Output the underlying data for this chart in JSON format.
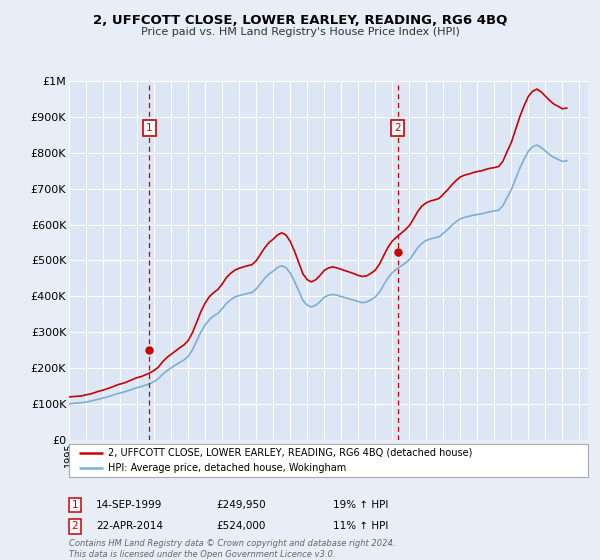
{
  "title": "2, UFFCOTT CLOSE, LOWER EARLEY, READING, RG6 4BQ",
  "subtitle": "Price paid vs. HM Land Registry's House Price Index (HPI)",
  "background_color": "#e8eef8",
  "plot_bg_color": "#dce6f5",
  "grid_color": "#ffffff",
  "ylim": [
    0,
    1000000
  ],
  "yticks": [
    0,
    100000,
    200000,
    300000,
    400000,
    500000,
    600000,
    700000,
    800000,
    900000,
    1000000
  ],
  "ytick_labels": [
    "£0",
    "£100K",
    "£200K",
    "£300K",
    "£400K",
    "£500K",
    "£600K",
    "£700K",
    "£800K",
    "£900K",
    "£1M"
  ],
  "sale1_year": 1999.71,
  "sale1_price": 249950,
  "sale2_year": 2014.31,
  "sale2_price": 524000,
  "legend_line1": "2, UFFCOTT CLOSE, LOWER EARLEY, READING, RG6 4BQ (detached house)",
  "legend_line2": "HPI: Average price, detached house, Wokingham",
  "note1_label": "1",
  "note1_date": "14-SEP-1999",
  "note1_price": "£249,950",
  "note1_hpi": "19% ↑ HPI",
  "note2_label": "2",
  "note2_date": "22-APR-2014",
  "note2_price": "£524,000",
  "note2_hpi": "11% ↑ HPI",
  "footer": "Contains HM Land Registry data © Crown copyright and database right 2024.\nThis data is licensed under the Open Government Licence v3.0.",
  "line_red_color": "#cc0000",
  "line_blue_color": "#7bafd4",
  "marker_vline_color": "#cc0000",
  "hpi_years": [
    1995.0,
    1995.25,
    1995.5,
    1995.75,
    1996.0,
    1996.25,
    1996.5,
    1996.75,
    1997.0,
    1997.25,
    1997.5,
    1997.75,
    1998.0,
    1998.25,
    1998.5,
    1998.75,
    1999.0,
    1999.25,
    1999.5,
    1999.75,
    2000.0,
    2000.25,
    2000.5,
    2000.75,
    2001.0,
    2001.25,
    2001.5,
    2001.75,
    2002.0,
    2002.25,
    2002.5,
    2002.75,
    2003.0,
    2003.25,
    2003.5,
    2003.75,
    2004.0,
    2004.25,
    2004.5,
    2004.75,
    2005.0,
    2005.25,
    2005.5,
    2005.75,
    2006.0,
    2006.25,
    2006.5,
    2006.75,
    2007.0,
    2007.25,
    2007.5,
    2007.75,
    2008.0,
    2008.25,
    2008.5,
    2008.75,
    2009.0,
    2009.25,
    2009.5,
    2009.75,
    2010.0,
    2010.25,
    2010.5,
    2010.75,
    2011.0,
    2011.25,
    2011.5,
    2011.75,
    2012.0,
    2012.25,
    2012.5,
    2012.75,
    2013.0,
    2013.25,
    2013.5,
    2013.75,
    2014.0,
    2014.25,
    2014.5,
    2014.75,
    2015.0,
    2015.25,
    2015.5,
    2015.75,
    2016.0,
    2016.25,
    2016.5,
    2016.75,
    2017.0,
    2017.25,
    2017.5,
    2017.75,
    2018.0,
    2018.25,
    2018.5,
    2018.75,
    2019.0,
    2019.25,
    2019.5,
    2019.75,
    2020.0,
    2020.25,
    2020.5,
    2020.75,
    2021.0,
    2021.25,
    2021.5,
    2021.75,
    2022.0,
    2022.25,
    2022.5,
    2022.75,
    2023.0,
    2023.25,
    2023.5,
    2023.75,
    2024.0,
    2024.25
  ],
  "hpi_values": [
    100000,
    101000,
    102000,
    103000,
    105000,
    107000,
    110000,
    113000,
    116000,
    119000,
    123000,
    127000,
    130000,
    133000,
    137000,
    141000,
    145000,
    148000,
    152000,
    156000,
    162000,
    170000,
    182000,
    192000,
    200000,
    208000,
    215000,
    222000,
    232000,
    250000,
    275000,
    300000,
    320000,
    335000,
    345000,
    352000,
    365000,
    380000,
    390000,
    398000,
    402000,
    405000,
    408000,
    410000,
    420000,
    435000,
    450000,
    462000,
    470000,
    480000,
    485000,
    480000,
    465000,
    442000,
    415000,
    388000,
    375000,
    370000,
    375000,
    385000,
    397000,
    403000,
    405000,
    403000,
    399000,
    396000,
    392000,
    389000,
    385000,
    382000,
    384000,
    390000,
    398000,
    412000,
    432000,
    452000,
    466000,
    476000,
    484000,
    492000,
    502000,
    518000,
    536000,
    548000,
    556000,
    560000,
    563000,
    566000,
    576000,
    586000,
    598000,
    608000,
    616000,
    620000,
    623000,
    626000,
    628000,
    630000,
    633000,
    636000,
    638000,
    640000,
    653000,
    676000,
    698000,
    728000,
    758000,
    783000,
    805000,
    817000,
    822000,
    815000,
    805000,
    795000,
    787000,
    782000,
    776000,
    778000
  ],
  "red_years": [
    1995.0,
    1995.25,
    1995.5,
    1995.75,
    1996.0,
    1996.25,
    1996.5,
    1996.75,
    1997.0,
    1997.25,
    1997.5,
    1997.75,
    1998.0,
    1998.25,
    1998.5,
    1998.75,
    1999.0,
    1999.25,
    1999.5,
    1999.75,
    2000.0,
    2000.25,
    2000.5,
    2000.75,
    2001.0,
    2001.25,
    2001.5,
    2001.75,
    2002.0,
    2002.25,
    2002.5,
    2002.75,
    2003.0,
    2003.25,
    2003.5,
    2003.75,
    2004.0,
    2004.25,
    2004.5,
    2004.75,
    2005.0,
    2005.25,
    2005.5,
    2005.75,
    2006.0,
    2006.25,
    2006.5,
    2006.75,
    2007.0,
    2007.25,
    2007.5,
    2007.75,
    2008.0,
    2008.25,
    2008.5,
    2008.75,
    2009.0,
    2009.25,
    2009.5,
    2009.75,
    2010.0,
    2010.25,
    2010.5,
    2010.75,
    2011.0,
    2011.25,
    2011.5,
    2011.75,
    2012.0,
    2012.25,
    2012.5,
    2012.75,
    2013.0,
    2013.25,
    2013.5,
    2013.75,
    2014.0,
    2014.25,
    2014.5,
    2014.75,
    2015.0,
    2015.25,
    2015.5,
    2015.75,
    2016.0,
    2016.25,
    2016.5,
    2016.75,
    2017.0,
    2017.25,
    2017.5,
    2017.75,
    2018.0,
    2018.25,
    2018.5,
    2018.75,
    2019.0,
    2019.25,
    2019.5,
    2019.75,
    2020.0,
    2020.25,
    2020.5,
    2020.75,
    2021.0,
    2021.25,
    2021.5,
    2021.75,
    2022.0,
    2022.25,
    2022.5,
    2022.75,
    2023.0,
    2023.25,
    2023.5,
    2023.75,
    2024.0,
    2024.25
  ],
  "red_values": [
    119000,
    120000,
    121000,
    122000,
    125000,
    127000,
    131000,
    135000,
    138000,
    142000,
    146000,
    151000,
    155000,
    158000,
    163000,
    168000,
    173000,
    176000,
    181000,
    186000,
    193000,
    202000,
    217000,
    229000,
    238000,
    247000,
    256000,
    264000,
    276000,
    298000,
    327000,
    357000,
    381000,
    399000,
    410000,
    419000,
    434000,
    452000,
    464000,
    473000,
    478000,
    482000,
    485000,
    488000,
    499000,
    517000,
    535000,
    550000,
    559000,
    571000,
    577000,
    571000,
    553000,
    526000,
    494000,
    462000,
    446000,
    440000,
    446000,
    458000,
    472000,
    479000,
    482000,
    479000,
    475000,
    471000,
    467000,
    463000,
    458000,
    455000,
    457000,
    464000,
    473000,
    490000,
    514000,
    537000,
    554000,
    565000,
    575000,
    585000,
    597000,
    616000,
    637000,
    652000,
    661000,
    666000,
    669000,
    673000,
    685000,
    697000,
    711000,
    723000,
    733000,
    738000,
    741000,
    745000,
    748000,
    750000,
    754000,
    757000,
    759000,
    762000,
    777000,
    804000,
    830000,
    866000,
    902000,
    932000,
    958000,
    972000,
    978000,
    970000,
    958000,
    946000,
    936000,
    930000,
    923000,
    925000
  ]
}
